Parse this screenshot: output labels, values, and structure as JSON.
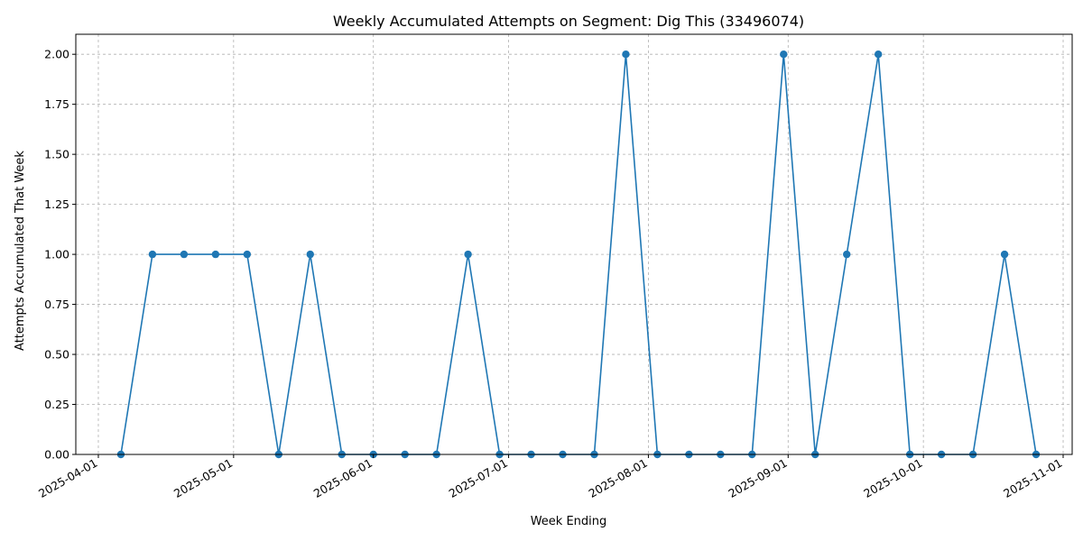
{
  "chart_data": {
    "type": "line",
    "title": "Weekly Accumulated Attempts on Segment: Dig This (33496074)",
    "xlabel": "Week Ending",
    "ylabel": "Attempts Accumulated That Week",
    "x_axis_type": "date",
    "xlim": [
      "2025-03-27",
      "2025-11-03"
    ],
    "ylim": [
      0,
      2.1
    ],
    "x_ticks": [
      "2025-04-01",
      "2025-05-01",
      "2025-06-01",
      "2025-07-01",
      "2025-08-01",
      "2025-09-01",
      "2025-10-01",
      "2025-11-01"
    ],
    "y_ticks": [
      "0.00",
      "0.25",
      "0.50",
      "0.75",
      "1.00",
      "1.25",
      "1.50",
      "1.75",
      "2.00"
    ],
    "grid": true,
    "line_color": "#1f77b4",
    "marker": "circle",
    "series": [
      {
        "x": [
          "2025-04-06",
          "2025-04-13",
          "2025-04-20",
          "2025-04-27",
          "2025-05-04",
          "2025-05-11",
          "2025-05-18",
          "2025-05-25",
          "2025-06-01",
          "2025-06-08",
          "2025-06-15",
          "2025-06-22",
          "2025-06-29",
          "2025-07-06",
          "2025-07-13",
          "2025-07-20",
          "2025-07-27",
          "2025-08-03",
          "2025-08-10",
          "2025-08-17",
          "2025-08-24",
          "2025-08-31",
          "2025-09-07",
          "2025-09-14",
          "2025-09-21",
          "2025-09-28",
          "2025-10-05",
          "2025-10-12",
          "2025-10-19",
          "2025-10-26"
        ],
        "values": [
          0,
          1,
          1,
          1,
          1,
          0,
          1,
          0,
          0,
          0,
          0,
          1,
          0,
          0,
          0,
          0,
          2,
          0,
          0,
          0,
          0,
          2,
          0,
          1,
          2,
          0,
          0,
          0,
          1,
          0
        ]
      }
    ]
  }
}
